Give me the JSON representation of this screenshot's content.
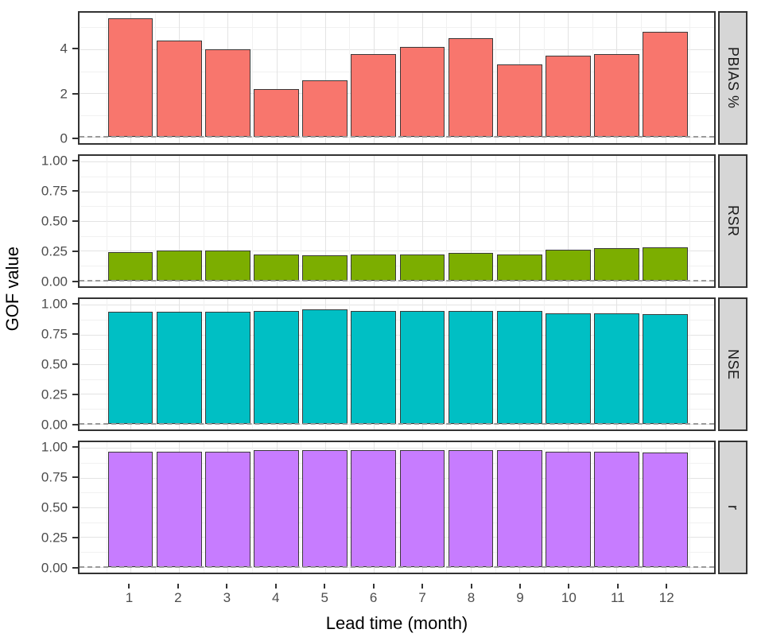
{
  "chart_data": {
    "type": "bar",
    "title": "",
    "xlabel": "Lead time (month)",
    "ylabel": "GOF value",
    "categories": [
      "1",
      "2",
      "3",
      "4",
      "5",
      "6",
      "7",
      "8",
      "9",
      "10",
      "11",
      "12"
    ],
    "facet_strip_position": "right",
    "grid": "on",
    "legend": "none",
    "panels": [
      {
        "label": "PBIAS %",
        "bar_color": "#F8766D",
        "values": [
          5.4,
          4.4,
          4.0,
          2.2,
          2.6,
          3.8,
          4.1,
          4.5,
          3.3,
          3.7,
          3.8,
          4.8
        ],
        "ylim": [
          -0.28,
          5.67
        ],
        "yticks": [
          0,
          2,
          4
        ],
        "ytick_labels": [
          "0",
          "2",
          "4"
        ],
        "yminor": [
          1,
          3,
          5
        ],
        "ref_line_y": 0
      },
      {
        "label": "RSR",
        "bar_color": "#7CAE00",
        "values": [
          0.24,
          0.25,
          0.25,
          0.22,
          0.21,
          0.22,
          0.22,
          0.23,
          0.22,
          0.26,
          0.27,
          0.28
        ],
        "ylim": [
          -0.05,
          1.05
        ],
        "yticks": [
          0,
          0.25,
          0.5,
          0.75,
          1
        ],
        "ytick_labels": [
          "0.00",
          "0.25",
          "0.50",
          "0.75",
          "1.00"
        ],
        "yminor": [
          0.125,
          0.375,
          0.625,
          0.875
        ],
        "ref_line_y": 0
      },
      {
        "label": "NSE",
        "bar_color": "#00BFC4",
        "values": [
          0.94,
          0.94,
          0.94,
          0.95,
          0.96,
          0.95,
          0.95,
          0.95,
          0.95,
          0.93,
          0.93,
          0.92
        ],
        "ylim": [
          -0.05,
          1.05
        ],
        "yticks": [
          0,
          0.25,
          0.5,
          0.75,
          1
        ],
        "ytick_labels": [
          "0.00",
          "0.25",
          "0.50",
          "0.75",
          "1.00"
        ],
        "yminor": [
          0.125,
          0.375,
          0.625,
          0.875
        ],
        "ref_line_y": 0
      },
      {
        "label": "r",
        "bar_color": "#C77CFF",
        "values": [
          0.97,
          0.97,
          0.97,
          0.98,
          0.98,
          0.98,
          0.98,
          0.98,
          0.98,
          0.97,
          0.97,
          0.96
        ],
        "ylim": [
          -0.05,
          1.05
        ],
        "yticks": [
          0,
          0.25,
          0.5,
          0.75,
          1
        ],
        "ytick_labels": [
          "0.00",
          "0.25",
          "0.50",
          "0.75",
          "1.00"
        ],
        "yminor": [
          0.125,
          0.375,
          0.625,
          0.875
        ],
        "ref_line_y": 0
      }
    ]
  },
  "colors": {
    "strip_bg": "#D6D6D6",
    "panel_border": "#333333",
    "grid_major": "#E3E3E3",
    "grid_minor": "#F1F1F1",
    "bar_stroke": "#3A3A3A",
    "reference_line": "#9A9A9A",
    "tick_text": "#4D4D4D",
    "axis_title_text": "#000000"
  }
}
